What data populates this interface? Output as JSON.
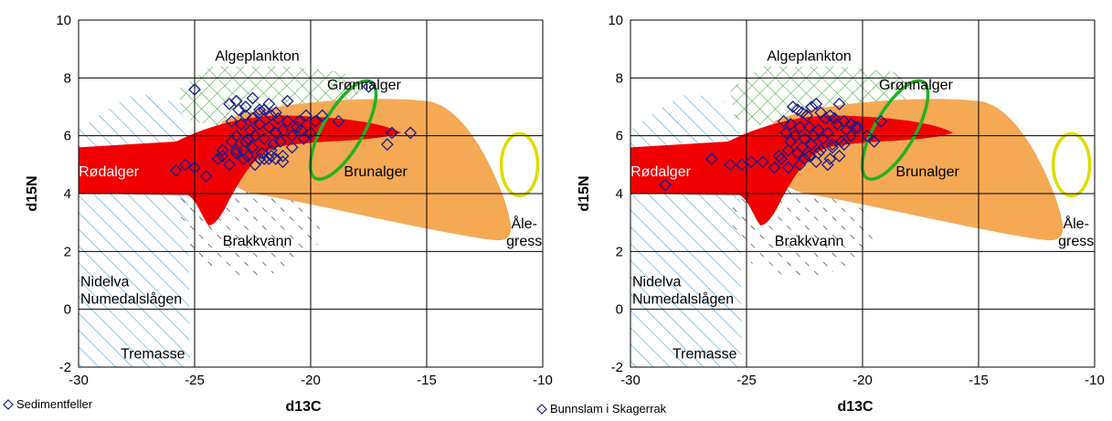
{
  "chart_data": [
    {
      "type": "scatter",
      "xlabel": "d13C",
      "ylabel": "d15N",
      "xlim": [
        -30,
        -10
      ],
      "ylim": [
        -2,
        10
      ],
      "xticks": [
        "-30",
        "-25",
        "-20",
        "-15",
        "-10"
      ],
      "yticks": [
        "-2",
        "0",
        "2",
        "4",
        "6",
        "8",
        "10"
      ],
      "grid": true,
      "legend": {
        "label": "Sedimentfeller",
        "placement": "bottom-left"
      },
      "regions": {
        "algeplankton": "Algeplankton",
        "gronnalger": "Grønnalger",
        "rodalger": "Rødalger",
        "brunalger": "Brunalger",
        "alegress_1": "Åle-",
        "alegress_2": "gress",
        "brakkvann": "Brakkvann",
        "nidelva": "Nidelva",
        "numedalslagen": "Numedalslågen",
        "tremasse": "Tremasse"
      },
      "series": [
        {
          "marker": "diamond",
          "x": [
            -25,
            -23.5,
            -23.2,
            -22.8,
            -22.5,
            -22.2,
            -21.8,
            -21.5,
            -21,
            -20.5,
            -19.5,
            -18.8,
            -17.5,
            -16.5,
            -15.7,
            -16.7,
            -23.1,
            -22.8,
            -22.5,
            -22.2,
            -22,
            -21.7,
            -21.4,
            -21,
            -20.6,
            -20.2,
            -19.8,
            -23.4,
            -23,
            -22.6,
            -22.2,
            -21.8,
            -21.5,
            -21.2,
            -20.8,
            -20.4,
            -20,
            -23.2,
            -22.8,
            -22.4,
            -22,
            -21.6,
            -21.3,
            -20.8,
            -20.3,
            -23.4,
            -22.9,
            -22.5,
            -22.1,
            -21.7,
            -21.2,
            -23.8,
            -23.2,
            -22.7,
            -22.2,
            -21.7,
            -21.2,
            -24,
            -23.5,
            -22.9,
            -22.4,
            -21.8,
            -25.8,
            -25.4,
            -25,
            -24.5,
            -23.8,
            -23.2,
            -22.7,
            -22,
            -21.5
          ],
          "y": [
            7.6,
            7.1,
            7.2,
            7.0,
            7.3,
            6.9,
            7.1,
            6.8,
            7.2,
            6.5,
            6.7,
            6.5,
            7.7,
            6.1,
            6.1,
            5.7,
            6.9,
            6.7,
            6.6,
            6.8,
            6.9,
            6.7,
            6.6,
            6.5,
            6.3,
            6.7,
            6.5,
            6.5,
            6.4,
            6.2,
            6.4,
            6.3,
            6.1,
            6.2,
            6.0,
            6.2,
            6.1,
            6.0,
            5.8,
            6.0,
            5.9,
            5.7,
            5.8,
            5.6,
            5.9,
            5.8,
            5.5,
            5.6,
            5.4,
            5.5,
            5.3,
            5.5,
            5.4,
            5.3,
            5.2,
            5.3,
            5.1,
            5.2,
            5.0,
            5.2,
            5.0,
            5.2,
            4.8,
            5.0,
            4.9,
            4.6,
            5.3,
            5.5,
            5.9,
            5.2,
            5.2
          ]
        }
      ]
    },
    {
      "type": "scatter",
      "xlabel": "d13C",
      "ylabel": "d15N",
      "xlim": [
        -30,
        -10
      ],
      "ylim": [
        -2,
        10
      ],
      "xticks": [
        "-30",
        "-25",
        "-20",
        "-15",
        "-10"
      ],
      "yticks": [
        "-2",
        "0",
        "2",
        "4",
        "6",
        "8",
        "10"
      ],
      "grid": true,
      "legend": {
        "label": "Bunnslam i Skagerrak",
        "placement": "bottom-left"
      },
      "regions": {
        "algeplankton": "Algeplankton",
        "gronnalger": "Grønnalger",
        "rodalger": "Rødalger",
        "brunalger": "Brunalger",
        "alegress_1": "Åle-",
        "alegress_2": "gress",
        "brakkvann": "Brakkvann",
        "nidelva": "Nidelva",
        "numedalslagen": "Numedalslågen",
        "tremasse": "Tremasse"
      },
      "series": [
        {
          "marker": "diamond",
          "x": [
            -28.5,
            -26.5,
            -25.7,
            -25.2,
            -24.8,
            -24.3,
            -23.8,
            -23.5,
            -23.2,
            -23.0,
            -22.8,
            -22.6,
            -22.4,
            -22.2,
            -22.0,
            -21.8,
            -21.6,
            -21.4,
            -21.2,
            -21.0,
            -20.8,
            -20.5,
            -20.2,
            -19.8,
            -19.5,
            -19.2,
            -23.4,
            -23.1,
            -22.7,
            -22.3,
            -21.9,
            -21.5,
            -21.1,
            -20.7,
            -20.3,
            -23.3,
            -22.9,
            -22.5,
            -22.1,
            -21.7,
            -21.3,
            -20.9,
            -20.5,
            -23.1,
            -22.6,
            -22.2,
            -21.8,
            -21.3,
            -20.8,
            -22.8,
            -22.3,
            -21.9,
            -21.4,
            -22.5,
            -22.0,
            -21.5,
            -21.0,
            -23.6,
            -23.2,
            -22.7
          ],
          "y": [
            4.3,
            5.2,
            5.0,
            5.0,
            5.1,
            5.1,
            4.9,
            5.2,
            5.5,
            7.0,
            6.9,
            6.8,
            6.7,
            7.0,
            7.1,
            6.8,
            6.6,
            6.7,
            6.6,
            7.1,
            6.5,
            6.4,
            6.3,
            6.0,
            5.8,
            6.5,
            6.5,
            6.4,
            6.3,
            6.3,
            6.2,
            6.1,
            6.4,
            6.2,
            6.3,
            6.1,
            6.0,
            5.9,
            6.0,
            5.9,
            5.7,
            5.8,
            6.0,
            5.8,
            5.6,
            5.7,
            5.5,
            5.6,
            5.7,
            5.4,
            5.3,
            5.4,
            5.2,
            5.2,
            5.1,
            5.0,
            5.3,
            5.3,
            4.9,
            5.0
          ]
        }
      ]
    }
  ]
}
